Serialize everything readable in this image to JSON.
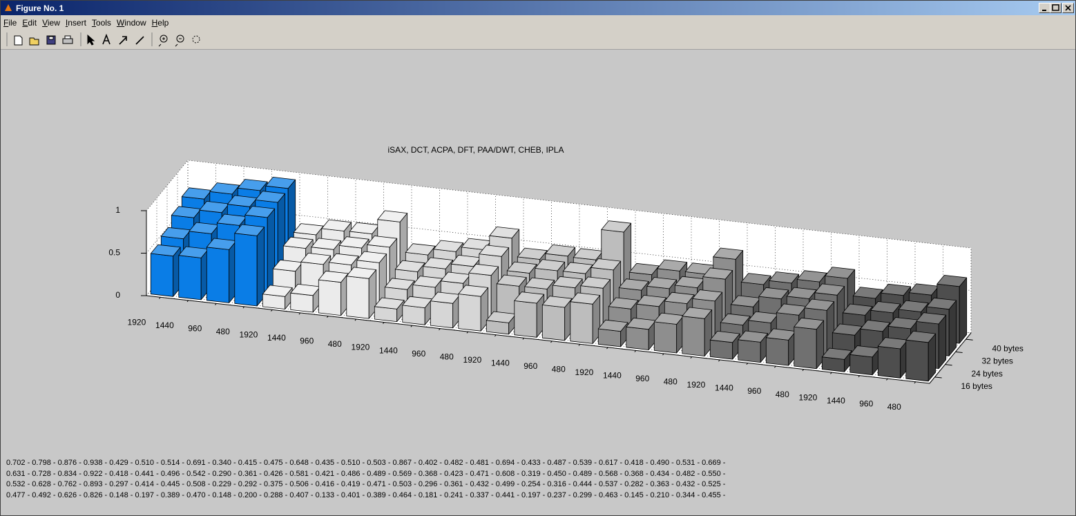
{
  "window": {
    "title": "Figure No. 1",
    "menu": [
      "File",
      "Edit",
      "View",
      "Insert",
      "Tools",
      "Window",
      "Help"
    ]
  },
  "chart_data": {
    "type": "bar3d",
    "title": "iSAX, DCT, ACPA, DFT, PAA/DWT, CHEB, IPLA",
    "categories": [
      "1920",
      "1440",
      "960",
      "480",
      "1920",
      "1440",
      "960",
      "480",
      "1920",
      "1440",
      "960",
      "480",
      "1920",
      "1440",
      "960",
      "480",
      "1920",
      "1440",
      "960",
      "480",
      "1920",
      "1440",
      "960",
      "480",
      "1920",
      "1440",
      "960",
      "480"
    ],
    "series": [
      {
        "name": "40 bytes",
        "values": [
          0.702,
          0.798,
          0.876,
          0.938,
          0.429,
          0.51,
          0.514,
          0.691,
          0.34,
          0.415,
          0.475,
          0.648,
          0.435,
          0.51,
          0.503,
          0.867,
          0.402,
          0.482,
          0.481,
          0.694,
          0.433,
          0.487,
          0.539,
          0.617,
          0.418,
          0.49,
          0.531,
          0.669
        ]
      },
      {
        "name": "32 bytes",
        "values": [
          0.631,
          0.728,
          0.834,
          0.922,
          0.418,
          0.441,
          0.496,
          0.542,
          0.29,
          0.361,
          0.426,
          0.581,
          0.421,
          0.486,
          0.489,
          0.569,
          0.368,
          0.423,
          0.471,
          0.608,
          0.319,
          0.45,
          0.489,
          0.568,
          0.368,
          0.434,
          0.482,
          0.55
        ]
      },
      {
        "name": "24 bytes",
        "values": [
          0.532,
          0.628,
          0.762,
          0.893,
          0.297,
          0.414,
          0.445,
          0.508,
          0.229,
          0.292,
          0.375,
          0.506,
          0.416,
          0.419,
          0.471,
          0.503,
          0.296,
          0.361,
          0.432,
          0.499,
          0.254,
          0.316,
          0.444,
          0.537,
          0.282,
          0.363,
          0.432,
          0.525
        ]
      },
      {
        "name": "16 bytes",
        "values": [
          0.477,
          0.492,
          0.626,
          0.826,
          0.148,
          0.197,
          0.389,
          0.47,
          0.148,
          0.2,
          0.288,
          0.407,
          0.133,
          0.401,
          0.389,
          0.464,
          0.181,
          0.241,
          0.337,
          0.441,
          0.197,
          0.237,
          0.299,
          0.463,
          0.145,
          0.21,
          0.344,
          0.455
        ]
      }
    ],
    "group_colors": [
      "#0a7de6",
      "#ebebeb",
      "#d6d6d6",
      "#bdbdbd",
      "#8e8e8e",
      "#707070",
      "#4e4e4e"
    ],
    "zlim": [
      0,
      1
    ],
    "zticks": [
      0,
      0.5,
      1
    ],
    "grid": true
  },
  "footer_lines": [
    "0.702 - 0.798 - 0.876 - 0.938 - 0.429 - 0.510 - 0.514 - 0.691 - 0.340 - 0.415 - 0.475 - 0.648 - 0.435 - 0.510 - 0.503 - 0.867 - 0.402 - 0.482 - 0.481 - 0.694 - 0.433 - 0.487 - 0.539 - 0.617 - 0.418 - 0.490 - 0.531 - 0.669 -",
    "0.631 - 0.728 - 0.834 - 0.922 - 0.418 - 0.441 - 0.496 - 0.542 - 0.290 - 0.361 - 0.426 - 0.581 - 0.421 - 0.486 - 0.489 - 0.569 - 0.368 - 0.423 - 0.471 - 0.608 - 0.319 - 0.450 - 0.489 - 0.568 - 0.368 - 0.434 - 0.482 - 0.550 -",
    "0.532 - 0.628 - 0.762 - 0.893 - 0.297 - 0.414 - 0.445 - 0.508 - 0.229 - 0.292 - 0.375 - 0.506 - 0.416 - 0.419 - 0.471 - 0.503 - 0.296 - 0.361 - 0.432 - 0.499 - 0.254 - 0.316 - 0.444 - 0.537 - 0.282 - 0.363 - 0.432 - 0.525 -",
    "0.477 - 0.492 - 0.626 - 0.826 - 0.148 - 0.197 - 0.389 - 0.470 - 0.148 - 0.200 - 0.288 - 0.407 - 0.133 - 0.401 - 0.389 - 0.464 - 0.181 - 0.241 - 0.337 - 0.441 - 0.197 - 0.237 - 0.299 - 0.463 - 0.145 - 0.210 - 0.344 - 0.455 -"
  ]
}
